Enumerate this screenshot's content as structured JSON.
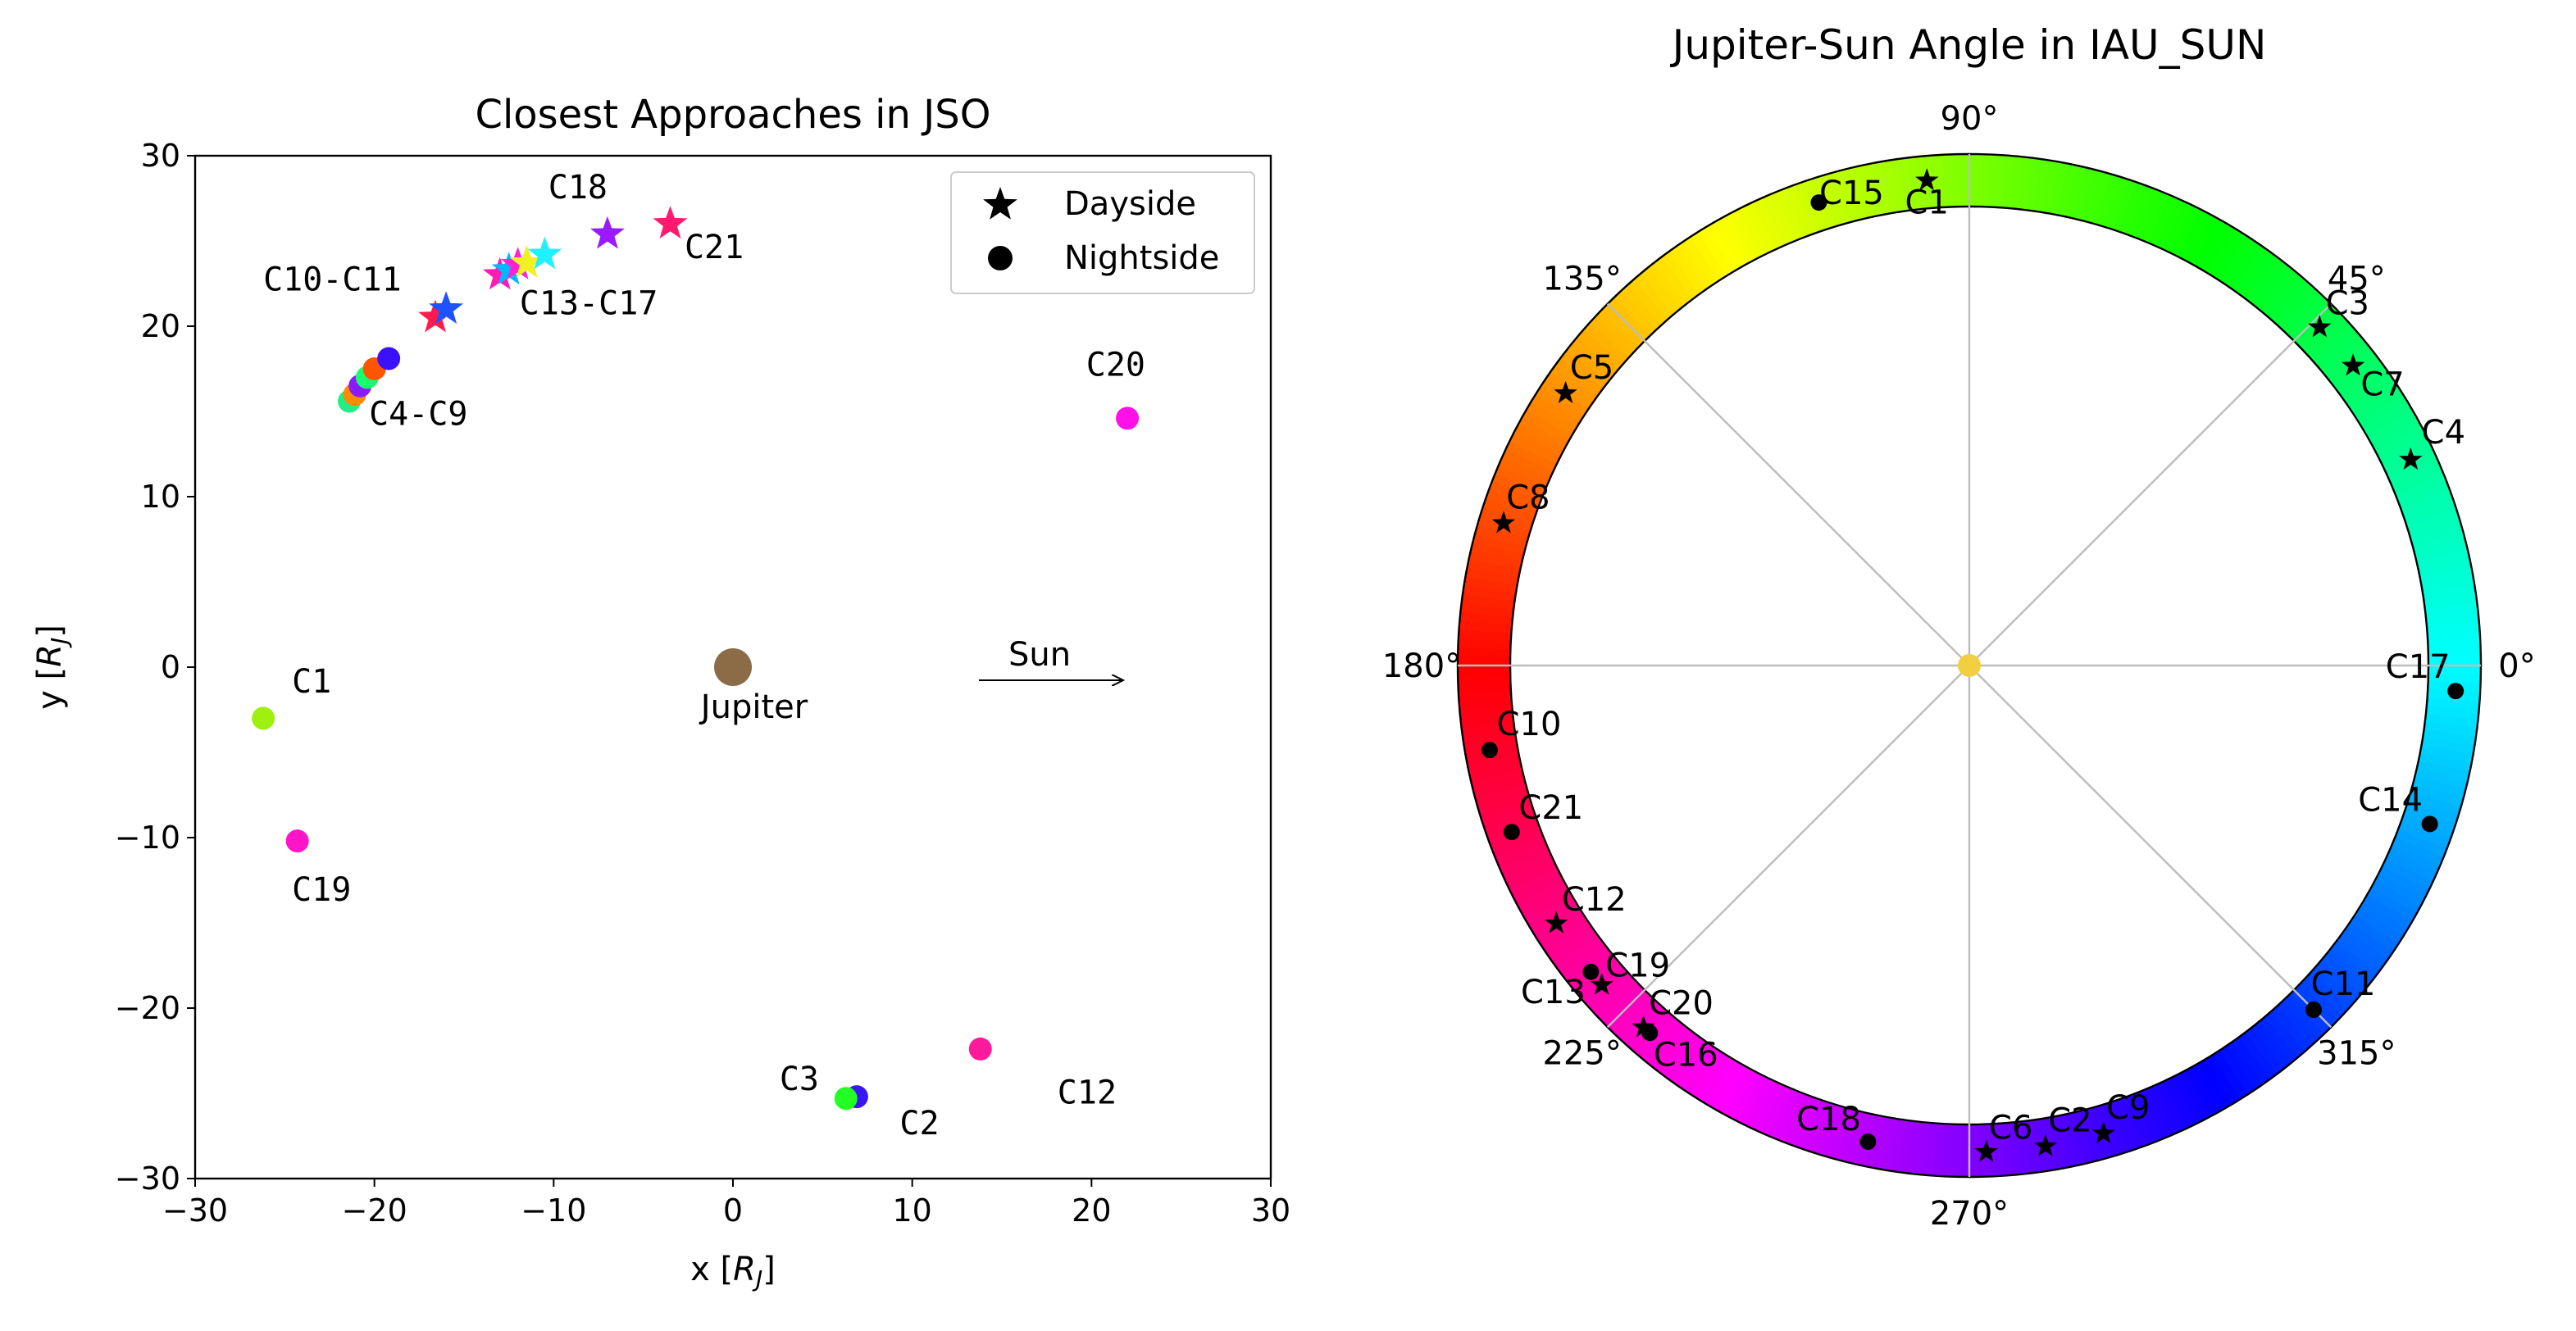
{
  "chart_data": [
    {
      "type": "scatter",
      "title": "Closest Approaches in JSO",
      "xlabel": "x [R_J]",
      "ylabel": "y [R_J]",
      "xlim": [
        -30,
        30
      ],
      "ylim": [
        -30,
        30
      ],
      "xticks": [
        "−30",
        "−20",
        "−10",
        "0",
        "10",
        "20",
        "30"
      ],
      "yticks": [
        "−30",
        "−20",
        "−10",
        "0",
        "10",
        "20",
        "30"
      ],
      "grid": false,
      "legend": {
        "placement": "top-right",
        "entries": [
          {
            "label": "Dayside",
            "marker": "star",
            "color": "#000000"
          },
          {
            "label": "Nightside",
            "marker": "circle",
            "color": "#000000"
          }
        ]
      },
      "jupiter": {
        "x": 0,
        "y": 0,
        "label": "Jupiter",
        "color": "#8b6c47"
      },
      "sun_label": "Sun",
      "points": [
        {
          "name": "C1",
          "x": -26.2,
          "y": -3.0,
          "marker": "circle",
          "color": "#9ef00f"
        },
        {
          "name": "C2",
          "x": 6.9,
          "y": -25.2,
          "marker": "circle",
          "color": "#3b16f4"
        },
        {
          "name": "C3",
          "x": 6.3,
          "y": -25.3,
          "marker": "circle",
          "color": "#22ff22"
        },
        {
          "name": "C19",
          "x": -24.3,
          "y": -10.2,
          "marker": "circle",
          "color": "#ff14c8"
        },
        {
          "name": "C20",
          "x": 22.0,
          "y": 14.6,
          "marker": "circle",
          "color": "#ff10e6"
        },
        {
          "name": "C12",
          "x": 13.8,
          "y": -22.4,
          "marker": "circle",
          "color": "#ff1a9c"
        },
        {
          "name": "C4",
          "x": -21.4,
          "y": 15.6,
          "marker": "circle",
          "color": "#22ee88"
        },
        {
          "name": "C5",
          "x": -21.1,
          "y": 16.0,
          "marker": "circle",
          "color": "#ff8a00"
        },
        {
          "name": "C6",
          "x": -20.8,
          "y": 16.5,
          "marker": "circle",
          "color": "#8a1aff"
        },
        {
          "name": "C7",
          "x": -20.4,
          "y": 17.0,
          "marker": "circle",
          "color": "#17ff6e"
        },
        {
          "name": "C8",
          "x": -20.0,
          "y": 17.5,
          "marker": "circle",
          "color": "#ff5400"
        },
        {
          "name": "C9",
          "x": -19.2,
          "y": 18.1,
          "marker": "circle",
          "color": "#3b10ff"
        },
        {
          "name": "C10",
          "x": -16.6,
          "y": 20.5,
          "marker": "star",
          "color": "#ff1a4e"
        },
        {
          "name": "C11",
          "x": -16.0,
          "y": 21.0,
          "marker": "star",
          "color": "#1d52ff"
        },
        {
          "name": "C13",
          "x": -13.0,
          "y": 23.0,
          "marker": "star",
          "color": "#ff1cb4"
        },
        {
          "name": "C14",
          "x": -12.5,
          "y": 23.3,
          "marker": "star",
          "color": "#00b7ff"
        },
        {
          "name": "C16",
          "x": -12.0,
          "y": 23.6,
          "marker": "star",
          "color": "#ff22d2"
        },
        {
          "name": "C15",
          "x": -11.5,
          "y": 23.7,
          "marker": "star",
          "color": "#f0f022"
        },
        {
          "name": "C17",
          "x": -10.5,
          "y": 24.2,
          "marker": "star",
          "color": "#1ff1ff"
        },
        {
          "name": "C18",
          "x": -7.0,
          "y": 25.4,
          "marker": "star",
          "color": "#9a1aff"
        },
        {
          "name": "C21",
          "x": -3.5,
          "y": 26.0,
          "marker": "star",
          "color": "#ff1a6e"
        }
      ],
      "annotations": [
        {
          "text": "C1",
          "x": -24.6,
          "y": -1.5
        },
        {
          "text": "C19",
          "x": -24.6,
          "y": -13.7
        },
        {
          "text": "C20",
          "x": 19.7,
          "y": 17.1
        },
        {
          "text": "C12",
          "x": 18.1,
          "y": -25.6
        },
        {
          "text": "C3",
          "x": 2.6,
          "y": -24.8
        },
        {
          "text": "C2",
          "x": 9.3,
          "y": -27.4
        },
        {
          "text": "C4-C9",
          "x": -20.3,
          "y": 14.2
        },
        {
          "text": "C10-C11",
          "x": -26.2,
          "y": 22.1
        },
        {
          "text": "C13-C17",
          "x": -11.9,
          "y": 20.7
        },
        {
          "text": "C18",
          "x": -10.3,
          "y": 27.5
        },
        {
          "text": "C21",
          "x": -2.7,
          "y": 24.0
        }
      ]
    },
    {
      "type": "polar",
      "title": "Jupiter-Sun Angle in IAU_SUN",
      "angle_labels": [
        {
          "deg": 0,
          "text": "0°"
        },
        {
          "deg": 45,
          "text": "45°"
        },
        {
          "deg": 90,
          "text": "90°"
        },
        {
          "deg": 135,
          "text": "135°"
        },
        {
          "deg": 180,
          "text": "180°"
        },
        {
          "deg": 225,
          "text": "225°"
        },
        {
          "deg": 270,
          "text": "270°"
        },
        {
          "deg": 315,
          "text": "315°"
        }
      ],
      "ring": "hue color wheel (red at 180°, green at 45°–90°, blue at 315°)",
      "grid": true,
      "points": [
        {
          "name": "C1",
          "deg": 95,
          "marker": "star",
          "label_dx": 0,
          "label_dy": 28
        },
        {
          "name": "C15",
          "deg": 108,
          "marker": "circle",
          "label_dx": 40,
          "label_dy": -10
        },
        {
          "name": "C3",
          "deg": 44,
          "marker": "star",
          "label_dx": 34,
          "label_dy": -28
        },
        {
          "name": "C7",
          "deg": 38,
          "marker": "star",
          "label_dx": 36,
          "label_dy": 24
        },
        {
          "name": "C4",
          "deg": 25,
          "marker": "star",
          "label_dx": 40,
          "label_dy": -32
        },
        {
          "name": "C5",
          "deg": 146,
          "marker": "star",
          "label_dx": 32,
          "label_dy": -30
        },
        {
          "name": "C8",
          "deg": 163,
          "marker": "star",
          "label_dx": 30,
          "label_dy": -30
        },
        {
          "name": "C17",
          "deg": 357,
          "marker": "circle",
          "label_dx": -46,
          "label_dy": -28
        },
        {
          "name": "C14",
          "deg": 341,
          "marker": "circle",
          "label_dx": -48,
          "label_dy": -28
        },
        {
          "name": "C11",
          "deg": 315,
          "marker": "circle",
          "label_dx": 36,
          "label_dy": -30
        },
        {
          "name": "C10",
          "deg": 190,
          "marker": "circle",
          "label_dx": 48,
          "label_dy": -30
        },
        {
          "name": "C21",
          "deg": 200,
          "marker": "circle",
          "label_dx": 48,
          "label_dy": -28
        },
        {
          "name": "C12",
          "deg": 212,
          "marker": "star",
          "label_dx": 46,
          "label_dy": -28
        },
        {
          "name": "C13",
          "deg": 219,
          "marker": "circle",
          "label_dx": -46,
          "label_dy": 26
        },
        {
          "name": "C19",
          "deg": 221,
          "marker": "star",
          "label_dx": 44,
          "label_dy": -22
        },
        {
          "name": "C20",
          "deg": 228,
          "marker": "star",
          "label_dx": 46,
          "label_dy": -28
        },
        {
          "name": "C16",
          "deg": 229,
          "marker": "circle",
          "label_dx": 44,
          "label_dy": 28
        },
        {
          "name": "C18",
          "deg": 258,
          "marker": "circle",
          "label_dx": -48,
          "label_dy": -26
        },
        {
          "name": "C6",
          "deg": 272,
          "marker": "star",
          "label_dx": 30,
          "label_dy": -28
        },
        {
          "name": "C2",
          "deg": 279,
          "marker": "star",
          "label_dx": 30,
          "label_dy": -30
        },
        {
          "name": "C9",
          "deg": 286,
          "marker": "star",
          "label_dx": 30,
          "label_dy": -30
        }
      ]
    }
  ]
}
